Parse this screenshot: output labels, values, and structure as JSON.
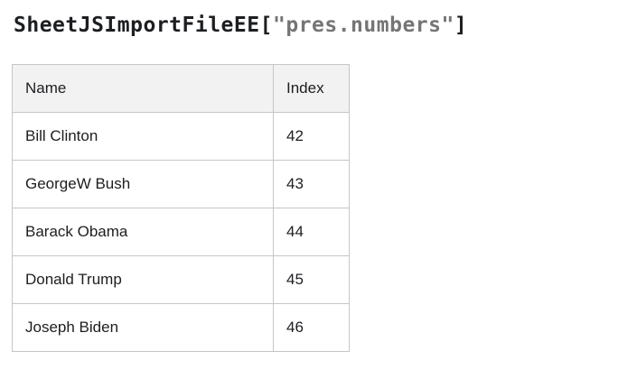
{
  "title": {
    "object_name": "SheetJSImportFileEE",
    "bracket_open": "[",
    "file_string": "\"pres.numbers\"",
    "bracket_close": "]"
  },
  "table": {
    "columns": [
      "Name",
      "Index"
    ],
    "rows": [
      {
        "name": "Bill Clinton",
        "index": "42"
      },
      {
        "name": "GeorgeW Bush",
        "index": "43"
      },
      {
        "name": "Barack Obama",
        "index": "44"
      },
      {
        "name": "Donald Trump",
        "index": "45"
      },
      {
        "name": "Joseph Biden",
        "index": "46"
      }
    ]
  },
  "colors": {
    "title_string_gray": "#757575",
    "table_header_background": "#f2f2f2",
    "table_border": "#c6c6c6",
    "text": "#1c1e21"
  }
}
